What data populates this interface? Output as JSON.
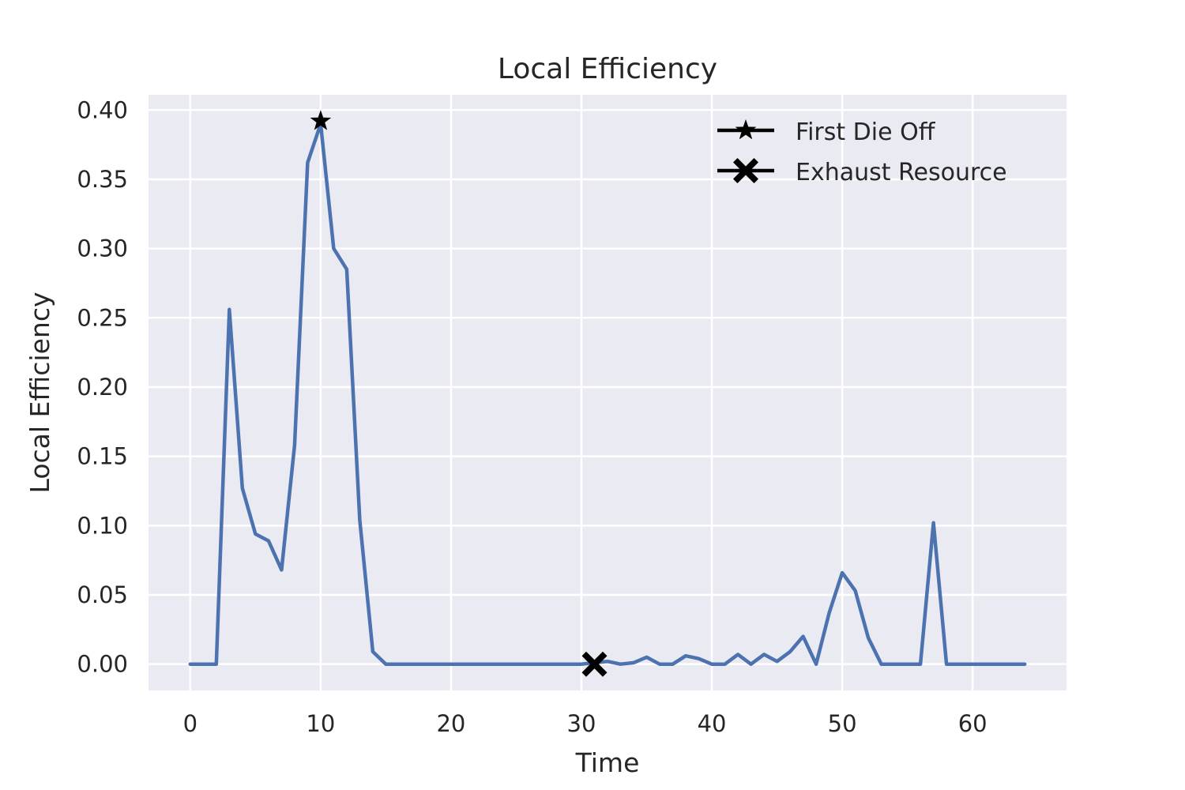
{
  "chart_data": {
    "type": "line",
    "title": "Local Efficiency",
    "xlabel": "Time",
    "ylabel": "Local Efficiency",
    "xlim": [
      -3.2,
      67.2
    ],
    "ylim": [
      -0.019,
      0.411
    ],
    "xticks": [
      0,
      10,
      20,
      30,
      40,
      50,
      60
    ],
    "yticks": [
      0.0,
      0.05,
      0.1,
      0.15,
      0.2,
      0.25,
      0.3,
      0.35,
      0.4
    ],
    "ytick_labels": [
      "0.00",
      "0.05",
      "0.10",
      "0.15",
      "0.20",
      "0.25",
      "0.30",
      "0.35",
      "0.40"
    ],
    "grid": true,
    "background_color": "#eaeaf2",
    "legend_position": "top-right",
    "series": [
      {
        "color": "#4c72b0",
        "x": [
          0,
          1,
          2,
          3,
          4,
          5,
          6,
          7,
          8,
          9,
          10,
          11,
          12,
          13,
          14,
          15,
          16,
          17,
          18,
          19,
          20,
          21,
          22,
          23,
          24,
          25,
          26,
          27,
          28,
          29,
          30,
          31,
          32,
          33,
          34,
          35,
          36,
          37,
          38,
          39,
          40,
          41,
          42,
          43,
          44,
          45,
          46,
          47,
          48,
          49,
          50,
          51,
          52,
          53,
          54,
          55,
          56,
          57,
          58,
          59,
          60,
          61,
          62,
          63,
          64
        ],
        "y": [
          0,
          0,
          0,
          0.256,
          0.127,
          0.094,
          0.089,
          0.068,
          0.158,
          0.362,
          0.39,
          0.3,
          0.285,
          0.104,
          0.009,
          0,
          0,
          0,
          0,
          0,
          0,
          0,
          0,
          0,
          0,
          0,
          0,
          0,
          0,
          0,
          0,
          0.001,
          0.002,
          0,
          0.001,
          0.005,
          0,
          0,
          0.006,
          0.004,
          0,
          0,
          0.007,
          0,
          0.007,
          0.002,
          0.009,
          0.02,
          0,
          0.037,
          0.066,
          0.053,
          0.019,
          0,
          0,
          0,
          0,
          0.102,
          0,
          0,
          0,
          0,
          0,
          0,
          0
        ]
      }
    ],
    "markers": [
      {
        "label": "First Die Off",
        "x": 10,
        "y": 0.392,
        "symbol": "star",
        "color": "#000000"
      },
      {
        "label": "Exhaust Resource",
        "x": 31,
        "y": 0.0,
        "symbol": "x",
        "color": "#000000"
      }
    ]
  }
}
